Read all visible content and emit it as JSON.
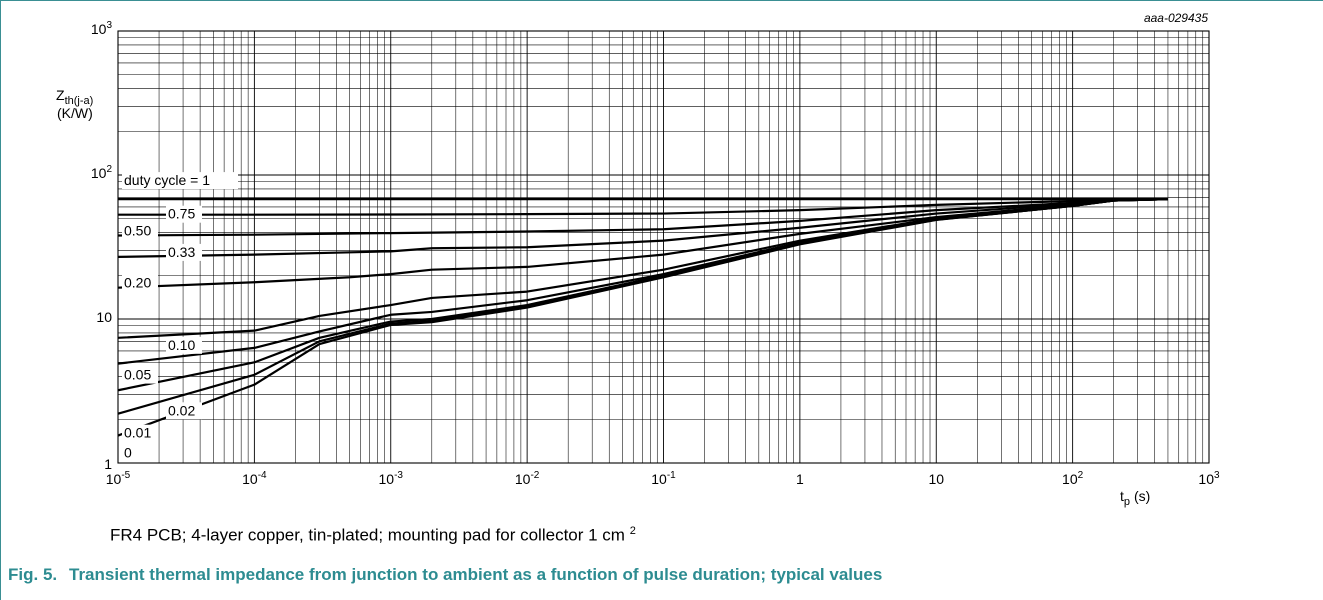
{
  "chart_data": {
    "type": "line",
    "figure_code": "aaa-029435",
    "x_scale": "log",
    "y_scale": "log",
    "xlim": [
      1e-05,
      1000
    ],
    "ylim": [
      1,
      1000
    ],
    "x_ticks": [
      {
        "base": "10",
        "exp": "-5",
        "value": 1e-05
      },
      {
        "base": "10",
        "exp": "-4",
        "value": 0.0001
      },
      {
        "base": "10",
        "exp": "-3",
        "value": 0.001
      },
      {
        "base": "10",
        "exp": "-2",
        "value": 0.01
      },
      {
        "base": "10",
        "exp": "-1",
        "value": 0.1
      },
      {
        "base": "1",
        "exp": "",
        "value": 1
      },
      {
        "base": "10",
        "exp": "",
        "value": 10
      },
      {
        "base": "10",
        "exp": "2",
        "value": 100
      },
      {
        "base": "10",
        "exp": "3",
        "value": 1000
      }
    ],
    "y_ticks": [
      {
        "base": "1",
        "exp": "",
        "value": 1
      },
      {
        "base": "10",
        "exp": "",
        "value": 10
      },
      {
        "base": "10",
        "exp": "2",
        "value": 100
      },
      {
        "base": "10",
        "exp": "3",
        "value": 1000
      }
    ],
    "ylabel": {
      "main": "Z",
      "sub": "th(j-a)",
      "unit": "(K/W)"
    },
    "xlabel": {
      "main": "t",
      "sub": "p",
      "unit": "(s)"
    },
    "grid": true,
    "series": [
      {
        "name": "duty cycle = 1",
        "x": [
          1e-05,
          0.0001,
          0.001,
          0.01,
          0.1,
          1,
          10,
          100,
          200,
          500
        ],
        "y": [
          68,
          68,
          68,
          68,
          68,
          68,
          68,
          68,
          68,
          68
        ]
      },
      {
        "name": "0.75",
        "x": [
          1e-05,
          0.0001,
          0.001,
          0.01,
          0.1,
          1,
          10,
          100,
          200,
          500
        ],
        "y": [
          53,
          53,
          53.2,
          53.5,
          54,
          57,
          62,
          66,
          67.5,
          68
        ]
      },
      {
        "name": "0.50",
        "x": [
          1e-05,
          0.0001,
          0.001,
          0.01,
          0.1,
          1,
          10,
          100,
          200,
          500
        ],
        "y": [
          38,
          38.5,
          39.5,
          40.5,
          42,
          48,
          57,
          64,
          67,
          68
        ]
      },
      {
        "name": "0.33",
        "x": [
          1e-05,
          0.0001,
          0.001,
          0.002,
          0.01,
          0.1,
          1,
          10,
          100,
          200,
          500
        ],
        "y": [
          27,
          28,
          29.5,
          31,
          31.5,
          35,
          43,
          54,
          63,
          67,
          68
        ]
      },
      {
        "name": "0.20",
        "x": [
          1e-05,
          0.0001,
          0.0005,
          0.001,
          0.002,
          0.01,
          0.1,
          1,
          10,
          100,
          200,
          500
        ],
        "y": [
          16.5,
          18,
          19.5,
          20.5,
          22,
          23,
          28,
          39,
          51,
          62,
          66.5,
          68
        ]
      },
      {
        "name": "0.10",
        "x": [
          1e-05,
          0.0001,
          0.0003,
          0.001,
          0.002,
          0.01,
          0.1,
          1,
          10,
          100,
          200,
          500
        ],
        "y": [
          7.4,
          8.3,
          10.5,
          12.5,
          14,
          15.5,
          22,
          35,
          50,
          61.5,
          66.5,
          68
        ]
      },
      {
        "name": "0.05",
        "x": [
          1e-05,
          0.0001,
          0.0003,
          0.001,
          0.002,
          0.01,
          0.1,
          1,
          10,
          100,
          200,
          500
        ],
        "y": [
          4.9,
          6.3,
          8.2,
          10.7,
          11.2,
          13.5,
          20.5,
          34,
          49.5,
          61.5,
          66.5,
          68
        ]
      },
      {
        "name": "0.02",
        "x": [
          1e-05,
          0.0001,
          0.0003,
          0.001,
          0.002,
          0.01,
          0.1,
          1,
          10,
          100,
          200,
          500
        ],
        "y": [
          3.2,
          5,
          7.4,
          9.6,
          10,
          12.5,
          20,
          33.5,
          49,
          61,
          66.5,
          68
        ]
      },
      {
        "name": "0.01",
        "x": [
          1e-05,
          0.0001,
          0.0003,
          0.001,
          0.002,
          0.01,
          0.1,
          1,
          10,
          100,
          200,
          500
        ],
        "y": [
          2.2,
          4.1,
          7,
          9.3,
          9.7,
          12.2,
          19.7,
          33.3,
          49,
          61,
          66.5,
          68
        ]
      },
      {
        "name": "0",
        "x": [
          1e-05,
          0.0001,
          0.0003,
          0.001,
          0.002,
          0.01,
          0.1,
          1,
          10,
          100,
          200,
          500
        ],
        "y": [
          1.55,
          3.5,
          6.7,
          9.1,
          9.5,
          12,
          19.5,
          33,
          48.8,
          61,
          66.5,
          68
        ]
      }
    ]
  },
  "caption_note": {
    "text": "FR4 PCB; 4-layer copper, tin-plated; mounting pad for collector 1 cm",
    "sup": "2"
  },
  "figure_caption": {
    "number": "Fig. 5.",
    "title": "Transient thermal impedance from junction to ambient as a function of pulse duration; typical values"
  },
  "colors": {
    "line": "#000000",
    "grid": "#000000",
    "caption": "#2d8c91",
    "frame": "#3a8f93"
  }
}
